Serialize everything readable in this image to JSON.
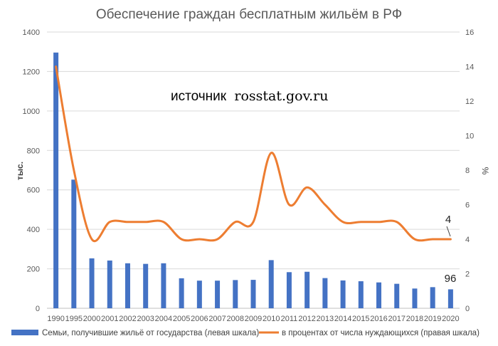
{
  "chart_data": {
    "type": "bar+line",
    "title": "Обеспечение граждан бесплатным жильём в РФ",
    "annotation": {
      "prefix": "источник",
      "url": "rosstat.gov.ru"
    },
    "categories": [
      "1990",
      "1995",
      "2000",
      "2001",
      "2002",
      "2003",
      "2004",
      "2005",
      "2006",
      "2007",
      "2008",
      "2009",
      "2010",
      "2011",
      "2012",
      "2013",
      "2014",
      "2015",
      "2016",
      "2017",
      "2018",
      "2019",
      "2020"
    ],
    "y_left": {
      "label": "тыс.",
      "min": 0,
      "max": 1400,
      "ticks": [
        "0",
        "200",
        "400",
        "600",
        "800",
        "1000",
        "1200",
        "1400"
      ]
    },
    "y_right": {
      "label": "%",
      "min": 0,
      "max": 16,
      "ticks": [
        "0",
        "2",
        "4",
        "6",
        "8",
        "10",
        "12",
        "14",
        "16"
      ]
    },
    "grid": true,
    "legend_position": "bottom",
    "series": [
      {
        "name": "Семьи, получившие жильё от государства (левая шкала)",
        "kind": "bar",
        "axis": "left",
        "color": "#4472C4",
        "values": [
          1296,
          652,
          253,
          242,
          228,
          225,
          228,
          152,
          140,
          140,
          143,
          144,
          244,
          183,
          185,
          153,
          141,
          137,
          131,
          124,
          100,
          107,
          96
        ],
        "end_label": "96"
      },
      {
        "name": "в процентах от числа нуждающихся (правая шкала)",
        "kind": "line",
        "axis": "right",
        "color": "#ED7D31",
        "values": [
          14,
          8,
          4,
          5,
          5,
          5,
          5,
          4,
          4,
          4,
          5,
          5,
          9,
          6,
          7,
          6,
          5,
          5,
          5,
          5,
          4,
          4,
          4
        ],
        "end_label": "4"
      }
    ]
  }
}
